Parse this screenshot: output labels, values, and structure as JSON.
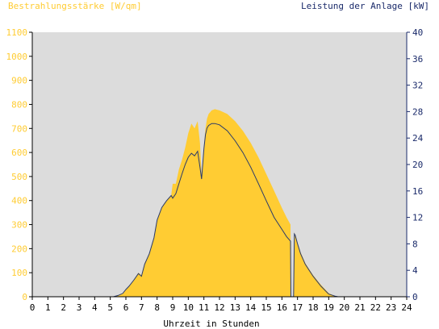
{
  "chart_data": {
    "type": "area",
    "y_left_label": "Bestrahlungsstärke [W/qm]",
    "y_right_label": "Leistung der Anlage [kW]",
    "xlabel": "Uhrzeit in Stunden",
    "x_ticks": [
      "0",
      "1",
      "2",
      "3",
      "4",
      "5",
      "6",
      "7",
      "8",
      "9",
      "10",
      "11",
      "12",
      "13",
      "14",
      "15",
      "16",
      "17",
      "18",
      "19",
      "20",
      "21",
      "22",
      "23",
      "24"
    ],
    "y_left_ticks": [
      "0",
      "100",
      "200",
      "300",
      "400",
      "500",
      "600",
      "700",
      "800",
      "900",
      "1000",
      "1100"
    ],
    "y_right_ticks": [
      "0",
      "4",
      "8",
      "12",
      "16",
      "20",
      "24",
      "28",
      "32",
      "36",
      "40"
    ],
    "xlim": [
      0,
      24
    ],
    "ylim_left": [
      0,
      1100
    ],
    "ylim_right": [
      0,
      40
    ],
    "grid": false,
    "colors": {
      "plot_background": "#dcdcdc",
      "irradiance_fill": "#ffcc33",
      "power_line": "#2a3a6a",
      "left_axis_text": "#ffcc33",
      "right_axis_text": "#1a2a6a",
      "axis": "#000000"
    },
    "series": [
      {
        "name": "Bestrahlungsstärke [W/qm]",
        "axis": "left",
        "x": [
          0,
          5.2,
          5.5,
          5.8,
          6.0,
          6.2,
          6.5,
          6.8,
          7.0,
          7.2,
          7.5,
          7.8,
          8.0,
          8.3,
          8.6,
          8.9,
          9.0,
          9.2,
          9.4,
          9.6,
          9.8,
          10.0,
          10.2,
          10.4,
          10.6,
          10.75,
          10.85,
          11.0,
          11.1,
          11.2,
          11.3,
          11.5,
          11.7,
          12.0,
          12.5,
          13.0,
          13.5,
          14.0,
          14.5,
          15.0,
          15.5,
          16.0,
          16.3,
          16.55,
          16.58,
          16.62,
          16.75,
          16.8,
          16.85,
          16.9,
          17.0,
          17.2,
          17.5,
          18.0,
          18.5,
          19.0,
          19.4,
          19.6,
          20.0,
          24.0
        ],
        "y": [
          0,
          0,
          5,
          15,
          30,
          45,
          70,
          100,
          90,
          140,
          180,
          250,
          320,
          370,
          400,
          420,
          470,
          470,
          530,
          570,
          620,
          680,
          720,
          700,
          730,
          640,
          500,
          620,
          700,
          740,
          760,
          775,
          780,
          775,
          760,
          730,
          690,
          640,
          580,
          510,
          440,
          370,
          330,
          300,
          0,
          0,
          0,
          265,
          260,
          250,
          225,
          185,
          140,
          90,
          50,
          15,
          3,
          0,
          0,
          0
        ]
      },
      {
        "name": "Leistung der Anlage [kW]",
        "axis": "right",
        "x": [
          0,
          5.2,
          5.5,
          5.8,
          6.0,
          6.2,
          6.5,
          6.8,
          7.0,
          7.2,
          7.5,
          7.8,
          8.0,
          8.3,
          8.6,
          8.9,
          9.0,
          9.2,
          9.4,
          9.6,
          9.8,
          10.0,
          10.2,
          10.4,
          10.6,
          10.75,
          10.85,
          11.0,
          11.1,
          11.2,
          11.3,
          11.5,
          11.7,
          12.0,
          12.5,
          13.0,
          13.5,
          14.0,
          14.5,
          15.0,
          15.5,
          16.0,
          16.3,
          16.55,
          16.58,
          16.62,
          16.75,
          16.8,
          16.85,
          16.9,
          17.0,
          17.2,
          17.5,
          18.0,
          18.5,
          19.0,
          19.4,
          19.6,
          20.0,
          24.0
        ],
        "y": [
          0,
          0,
          0.2,
          0.5,
          1.1,
          1.6,
          2.5,
          3.5,
          3.1,
          4.9,
          6.5,
          8.9,
          11.6,
          13.5,
          14.5,
          15.3,
          14.9,
          15.6,
          17.1,
          18.6,
          20.0,
          21.1,
          21.7,
          21.3,
          22.0,
          19.6,
          17.8,
          22.4,
          24.5,
          25.5,
          25.9,
          26.2,
          26.2,
          26.0,
          25.1,
          23.6,
          21.8,
          19.6,
          17.1,
          14.5,
          12.0,
          10.2,
          9.1,
          8.4,
          0,
          0,
          0,
          9.5,
          9.3,
          8.9,
          8.0,
          6.5,
          4.9,
          3.1,
          1.6,
          0.4,
          0.1,
          0,
          0,
          0
        ]
      }
    ]
  }
}
